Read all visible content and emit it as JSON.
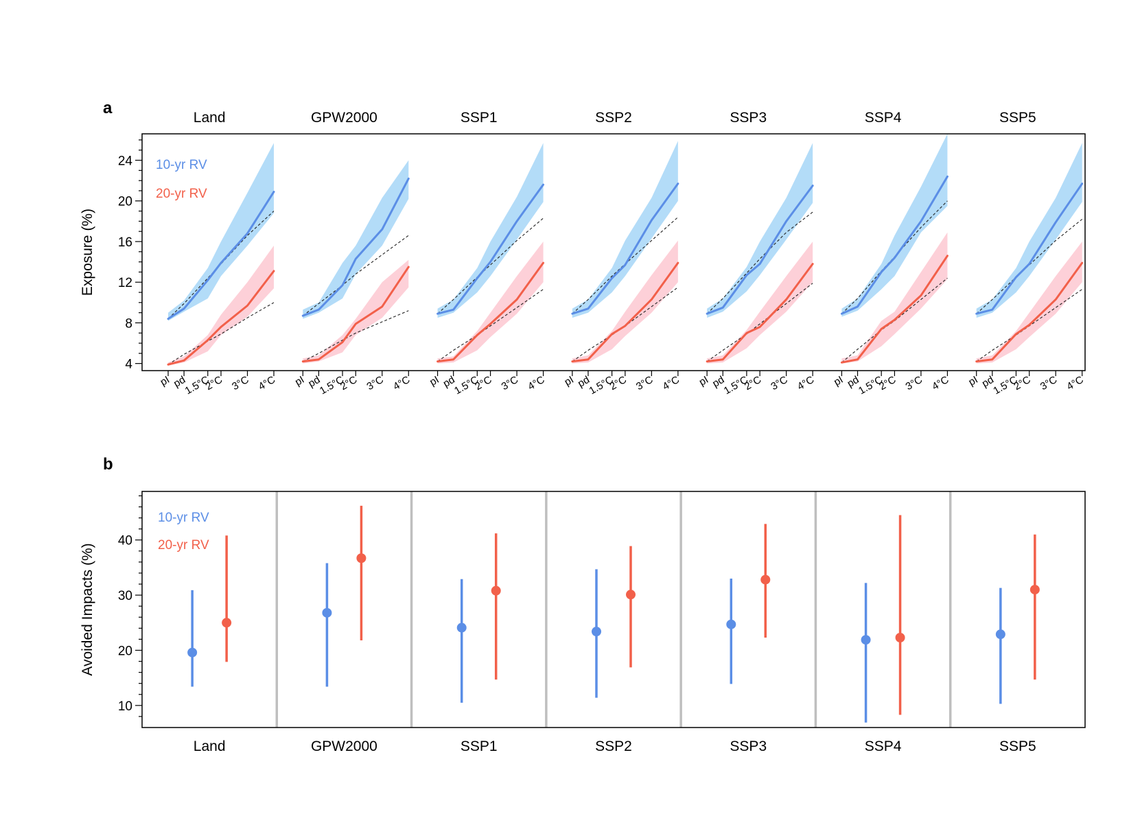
{
  "figure": {
    "panel_a_letter": "a",
    "panel_b_letter": "b"
  },
  "colors": {
    "blue_line": "#5b8ee6",
    "blue_band": "#b3dcf8",
    "red_line": "#f2604a",
    "red_band": "#fdd0d8",
    "dashed": "#222222",
    "separator": "#bfbfbf",
    "axis": "#000000"
  },
  "chart_data": [
    {
      "type": "line",
      "panel": "a",
      "ylabel": "Exposure (%)",
      "ylim": [
        3.3,
        26.6
      ],
      "yticks": [
        4,
        8,
        12,
        16,
        20,
        24
      ],
      "x_ticklabels": [
        "pI",
        "pd",
        "1.5°C",
        "2°C",
        "3°C",
        "4°C"
      ],
      "x_positions": [
        0,
        0.6,
        1.5,
        2,
        3,
        4
      ],
      "legend": {
        "position": "top-left",
        "entries": [
          "10-yr RV",
          "20-yr RV"
        ]
      },
      "facets": [
        {
          "title": "Land",
          "blue": {
            "mean": [
              8.4,
              9.4,
              12.2,
              13.9,
              16.8,
              20.9
            ],
            "lower": [
              8.2,
              9.1,
              10.4,
              12.6,
              15.6,
              18.8
            ],
            "upper": [
              9.0,
              10.2,
              13.4,
              16.0,
              20.8,
              25.7
            ],
            "dashed": [
              8.4,
              9.9,
              12.4,
              13.8,
              16.6,
              19.0
            ]
          },
          "red": {
            "mean": [
              3.9,
              4.3,
              6.3,
              7.6,
              9.7,
              13.1
            ],
            "lower": [
              3.8,
              4.1,
              5.2,
              6.8,
              8.6,
              11.4
            ],
            "upper": [
              4.1,
              4.7,
              6.8,
              8.8,
              12.0,
              15.6
            ],
            "dashed": [
              3.9,
              4.9,
              6.2,
              6.9,
              8.5,
              10.0
            ]
          }
        },
        {
          "title": "GPW2000",
          "blue": {
            "mean": [
              8.7,
              9.3,
              11.7,
              14.3,
              17.2,
              22.2
            ],
            "lower": [
              8.4,
              9.0,
              10.4,
              12.8,
              15.6,
              20.2
            ],
            "upper": [
              9.3,
              10.0,
              13.9,
              15.6,
              20.3,
              24.0
            ],
            "dashed": [
              8.7,
              9.9,
              11.7,
              12.8,
              14.7,
              16.6
            ]
          },
          "red": {
            "mean": [
              4.2,
              4.4,
              6.1,
              7.9,
              9.6,
              13.5
            ],
            "lower": [
              4.0,
              4.2,
              5.1,
              6.8,
              8.5,
              11.5
            ],
            "upper": [
              4.5,
              4.8,
              6.8,
              8.4,
              12.0,
              14.2
            ],
            "dashed": [
              4.2,
              5.0,
              6.3,
              7.0,
              8.1,
              9.2
            ]
          }
        },
        {
          "title": "SSP1",
          "blue": {
            "mean": [
              8.9,
              9.3,
              12.4,
              14.0,
              18.0,
              21.6
            ],
            "lower": [
              8.5,
              9.0,
              11.0,
              12.6,
              16.2,
              19.9
            ],
            "upper": [
              9.4,
              10.3,
              13.4,
              16.0,
              20.4,
              25.7
            ],
            "dashed": [
              8.9,
              10.3,
              12.5,
              13.7,
              16.1,
              18.3
            ]
          },
          "red": {
            "mean": [
              4.2,
              4.4,
              6.8,
              7.9,
              10.3,
              13.9
            ],
            "lower": [
              4.0,
              4.1,
              5.3,
              6.6,
              8.9,
              12.0
            ],
            "upper": [
              4.5,
              4.7,
              7.2,
              9.0,
              12.6,
              16.0
            ],
            "dashed": [
              4.2,
              5.3,
              6.8,
              7.7,
              9.5,
              11.3
            ]
          }
        },
        {
          "title": "SSP2",
          "blue": {
            "mean": [
              8.9,
              9.4,
              12.4,
              13.7,
              18.1,
              21.7
            ],
            "lower": [
              8.5,
              9.0,
              11.0,
              12.6,
              16.3,
              20.0
            ],
            "upper": [
              9.4,
              10.3,
              13.4,
              16.1,
              20.3,
              25.9
            ],
            "dashed": [
              8.9,
              10.3,
              12.6,
              13.8,
              16.1,
              18.4
            ]
          },
          "red": {
            "mean": [
              4.2,
              4.4,
              6.9,
              7.7,
              10.3,
              13.9
            ],
            "lower": [
              4.0,
              4.1,
              5.4,
              6.7,
              9.0,
              12.0
            ],
            "upper": [
              4.5,
              4.8,
              7.2,
              9.1,
              12.7,
              16.1
            ],
            "dashed": [
              4.2,
              5.3,
              6.8,
              7.7,
              9.6,
              11.5
            ]
          }
        },
        {
          "title": "SSP3",
          "blue": {
            "mean": [
              8.9,
              9.5,
              12.7,
              13.8,
              18.0,
              21.5
            ],
            "lower": [
              8.5,
              9.1,
              11.1,
              12.7,
              16.2,
              19.8
            ],
            "upper": [
              9.4,
              10.4,
              13.5,
              16.0,
              20.3,
              25.7
            ],
            "dashed": [
              8.9,
              10.4,
              12.9,
              14.3,
              16.9,
              18.9
            ]
          },
          "red": {
            "mean": [
              4.2,
              4.4,
              7.0,
              7.6,
              10.3,
              13.8
            ],
            "lower": [
              4.0,
              4.1,
              5.5,
              6.8,
              9.1,
              12.0
            ],
            "upper": [
              4.5,
              4.8,
              7.3,
              9.1,
              12.6,
              16.0
            ],
            "dashed": [
              4.2,
              5.3,
              6.9,
              7.9,
              9.9,
              11.9
            ]
          }
        },
        {
          "title": "SSP4",
          "blue": {
            "mean": [
              8.9,
              9.6,
              13.0,
              14.4,
              18.0,
              22.4
            ],
            "lower": [
              8.6,
              9.2,
              11.3,
              12.6,
              16.9,
              19.5
            ],
            "upper": [
              9.4,
              10.4,
              13.8,
              16.6,
              21.4,
              26.6
            ],
            "dashed": [
              8.9,
              10.4,
              13.1,
              14.5,
              17.4,
              20.0
            ]
          },
          "red": {
            "mean": [
              4.1,
              4.4,
              7.4,
              8.3,
              10.7,
              14.6
            ],
            "lower": [
              4.0,
              4.2,
              5.7,
              6.9,
              9.4,
              12.3
            ],
            "upper": [
              4.5,
              4.8,
              8.2,
              9.1,
              13.0,
              16.9
            ],
            "dashed": [
              4.1,
              5.4,
              7.3,
              8.2,
              10.3,
              12.4
            ]
          }
        },
        {
          "title": "SSP5",
          "blue": {
            "mean": [
              8.9,
              9.3,
              12.5,
              13.8,
              17.9,
              21.7
            ],
            "lower": [
              8.5,
              9.0,
              11.0,
              12.6,
              16.2,
              19.9
            ],
            "upper": [
              9.4,
              10.3,
              13.4,
              16.0,
              20.3,
              25.7
            ],
            "dashed": [
              8.9,
              10.3,
              12.5,
              13.7,
              16.1,
              18.2
            ]
          },
          "red": {
            "mean": [
              4.2,
              4.4,
              6.9,
              7.8,
              10.3,
              13.9
            ],
            "lower": [
              4.0,
              4.1,
              5.4,
              6.6,
              8.9,
              12.0
            ],
            "upper": [
              4.5,
              4.8,
              7.2,
              9.0,
              12.6,
              16.0
            ],
            "dashed": [
              4.2,
              5.3,
              6.8,
              7.7,
              9.5,
              11.3
            ]
          }
        }
      ]
    },
    {
      "type": "errorbar",
      "panel": "b",
      "ylabel": "Avoided Impacts (%)",
      "ylim": [
        6.0,
        48.8
      ],
      "yticks": [
        10,
        20,
        30,
        40
      ],
      "legend": {
        "position": "top-left",
        "entries": [
          "10-yr RV",
          "20-yr RV"
        ]
      },
      "categories": [
        "Land",
        "GPW2000",
        "SSP1",
        "SSP2",
        "SSP3",
        "SSP4",
        "SSP5"
      ],
      "series": [
        {
          "name": "10-yr RV",
          "values": [
            19.6,
            26.8,
            24.1,
            23.4,
            24.7,
            21.9,
            22.9
          ],
          "lower": [
            13.4,
            13.4,
            10.5,
            11.4,
            13.9,
            6.9,
            10.3
          ],
          "upper": [
            30.9,
            35.8,
            32.9,
            34.7,
            33.0,
            32.2,
            31.3
          ]
        },
        {
          "name": "20-yr RV",
          "values": [
            25.0,
            36.7,
            30.8,
            30.1,
            32.8,
            22.3,
            31.0
          ],
          "lower": [
            17.9,
            21.8,
            14.7,
            16.9,
            22.3,
            8.3,
            14.7
          ],
          "upper": [
            40.8,
            46.2,
            41.2,
            38.9,
            42.9,
            44.5,
            41.0
          ]
        }
      ]
    }
  ]
}
